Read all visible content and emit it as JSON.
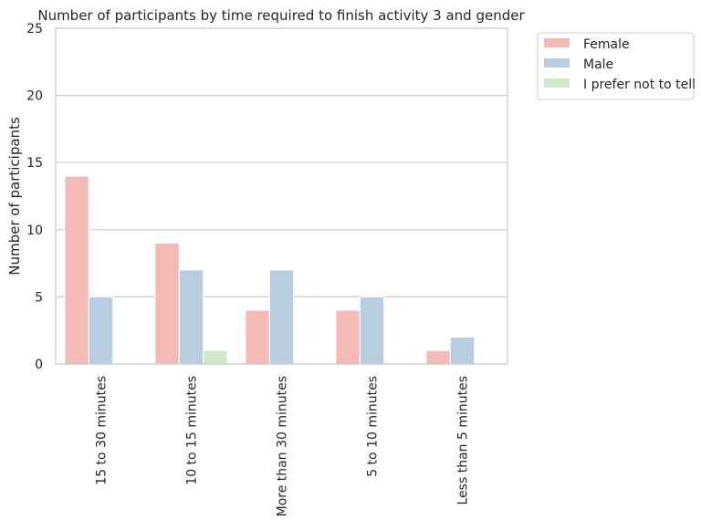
{
  "chart_data": {
    "type": "bar",
    "title": "Number of participants by time required to finish activity 3 and gender",
    "xlabel": "",
    "ylabel": "Number of participants",
    "categories": [
      "15 to 30 minutes",
      "10 to 15 minutes",
      "More than 30 minutes",
      "5 to 10 minutes",
      "Less than 5 minutes"
    ],
    "series": [
      {
        "name": "Female",
        "values": [
          14,
          9,
          4,
          4,
          1
        ],
        "color": "#f4bab6"
      },
      {
        "name": "Male",
        "values": [
          5,
          7,
          7,
          5,
          2
        ],
        "color": "#b9cde0"
      },
      {
        "name": "I prefer not to tell",
        "values": [
          0,
          1,
          0,
          0,
          0
        ],
        "color": "#cfe9c8"
      }
    ],
    "ylim": [
      0,
      25
    ],
    "yticks": [
      0,
      5,
      10,
      15,
      20,
      25
    ],
    "grid": true,
    "legend_position": "outside-top-right",
    "colors": {
      "grid": "#cccccc",
      "frame": "#cccccc",
      "text": "#262626"
    }
  }
}
